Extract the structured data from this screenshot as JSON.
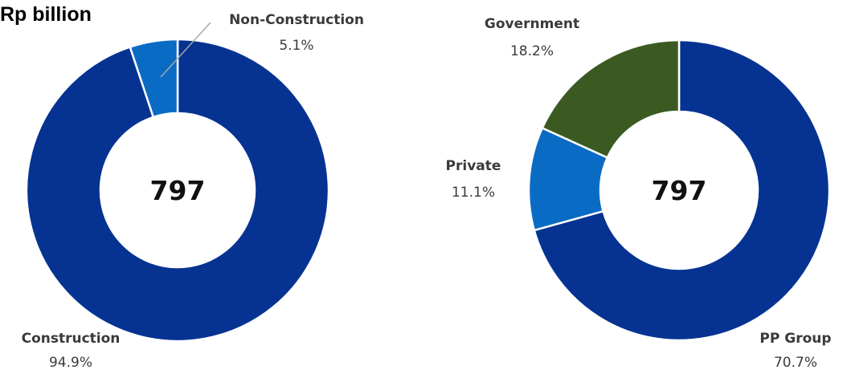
{
  "unit_label": "Rp billion",
  "chart_data": [
    {
      "type": "pie",
      "donut": true,
      "center_text": "797",
      "start_angle_deg": 0,
      "direction": "clockwise",
      "slices": [
        {
          "name": "Construction",
          "value": 94.9,
          "label": "94.9%",
          "color": "#063392"
        },
        {
          "name": "Non-Construction",
          "value": 5.1,
          "label": "5.1%",
          "color": "#0a6bc4"
        }
      ]
    },
    {
      "type": "pie",
      "donut": true,
      "center_text": "797",
      "start_angle_deg": 0,
      "direction": "clockwise",
      "slices": [
        {
          "name": "PP Group",
          "value": 70.7,
          "label": "70.7%",
          "color": "#063392"
        },
        {
          "name": "Private",
          "value": 11.1,
          "label": "11.1%",
          "color": "#0a6bc4"
        },
        {
          "name": "Government",
          "value": 18.2,
          "label": "18.2%",
          "color": "#3a5a22"
        }
      ]
    }
  ]
}
